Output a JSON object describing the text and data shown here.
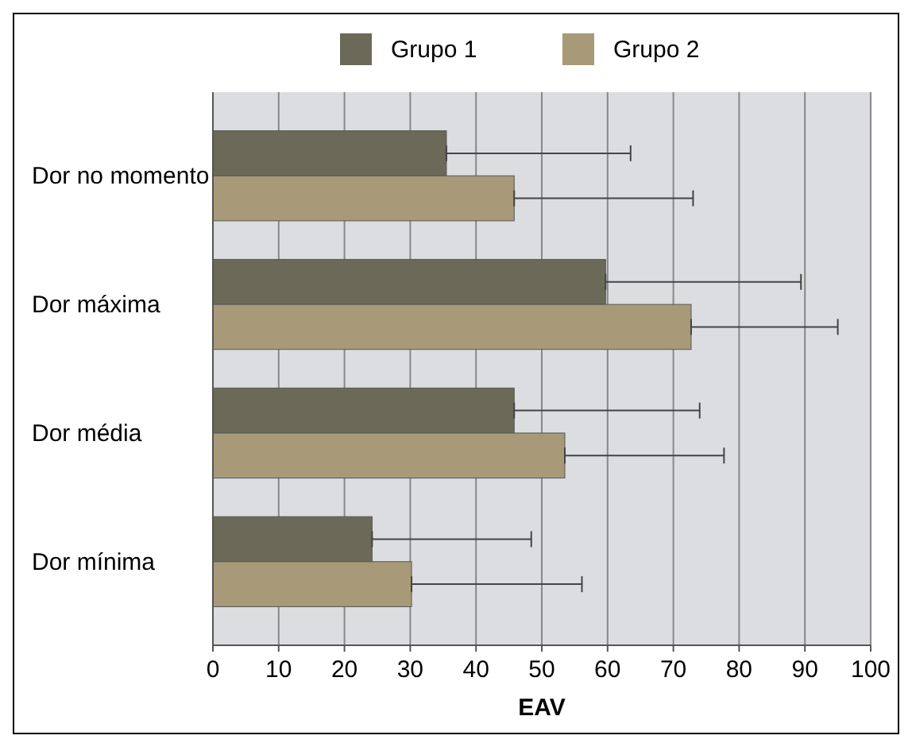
{
  "chart_data": {
    "type": "bar",
    "orientation": "horizontal",
    "xlabel": "EAV",
    "categories": [
      "Dor no momento",
      "Dor máxima",
      "Dor média",
      "Dor mínima"
    ],
    "series": [
      {
        "name": "Grupo 1",
        "color": "#6b6a58",
        "values": [
          35.5,
          59.7,
          45.8,
          24.2
        ],
        "errors": [
          [
            35.5,
            63.5
          ],
          [
            59.7,
            89.4
          ],
          [
            45.8,
            74
          ],
          [
            24.2,
            48.4
          ]
        ]
      },
      {
        "name": "Grupo 2",
        "color": "#a89a78",
        "values": [
          45.8,
          72.7,
          53.5,
          30.2
        ],
        "errors": [
          [
            45.8,
            73
          ],
          [
            72.7,
            95
          ],
          [
            53.5,
            77.7
          ],
          [
            30.2,
            56.1
          ]
        ]
      }
    ],
    "xlim": [
      0,
      100
    ],
    "xticks": [
      0,
      10,
      20,
      30,
      40,
      50,
      60,
      70,
      80,
      90,
      100
    ],
    "grid": "x",
    "legend": "top"
  }
}
